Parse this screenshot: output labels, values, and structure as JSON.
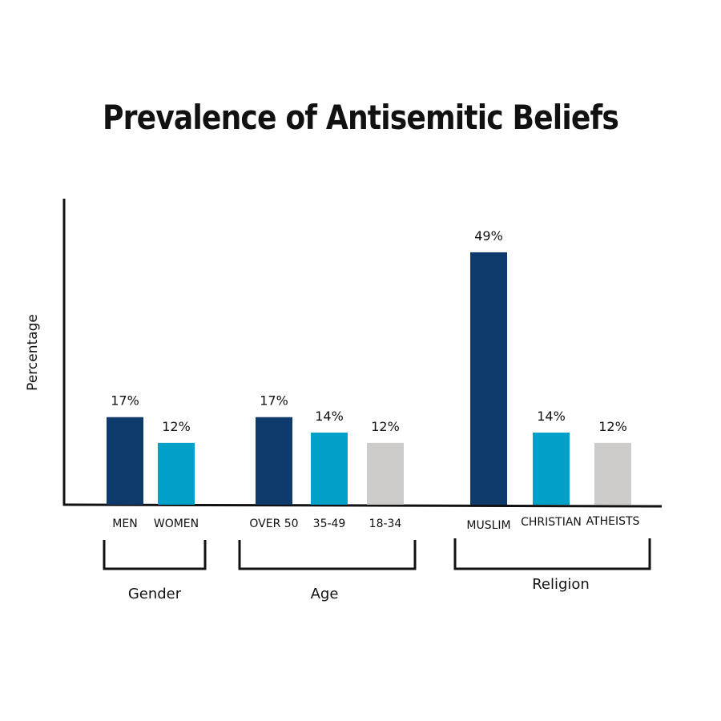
{
  "chart_data": {
    "type": "bar",
    "title": "Prevalence of Antisemitic Beliefs",
    "ylabel": "Percentage",
    "xlabel": "",
    "ylim": [
      0,
      55
    ],
    "grid": false,
    "colors": {
      "primary": "#0d3a6b",
      "secondary": "#00a0c8",
      "tertiary": "#cdcccb",
      "axis": "#111111"
    },
    "groups": [
      {
        "name": "Gender",
        "bars": [
          {
            "category": "MEN",
            "value": 17,
            "label": "17%",
            "color": "primary"
          },
          {
            "category": "WOMEN",
            "value": 12,
            "label": "12%",
            "color": "secondary"
          }
        ]
      },
      {
        "name": "Age",
        "bars": [
          {
            "category": "OVER 50",
            "value": 17,
            "label": "17%",
            "color": "primary"
          },
          {
            "category": "35-49",
            "value": 14,
            "label": "14%",
            "color": "secondary"
          },
          {
            "category": "18-34",
            "value": 12,
            "label": "12%",
            "color": "tertiary"
          }
        ]
      },
      {
        "name": "Religion",
        "bars": [
          {
            "category": "MUSLIM",
            "value": 49,
            "label": "49%",
            "color": "primary"
          },
          {
            "category": "CHRISTIAN",
            "value": 14,
            "label": "14%",
            "color": "secondary"
          },
          {
            "category": "ATHEISTS",
            "value": 12,
            "label": "12%",
            "color": "tertiary"
          }
        ]
      }
    ]
  }
}
